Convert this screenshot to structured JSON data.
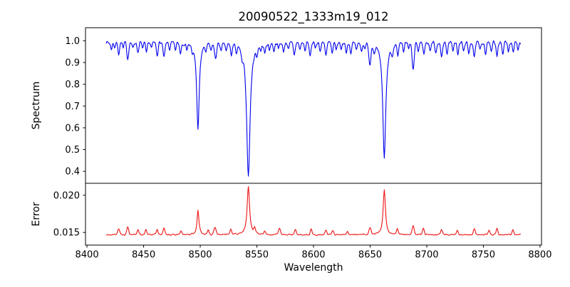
{
  "chart_data": {
    "type": "line",
    "title": "20090522_1333m19_012",
    "xlabel": "Wavelength",
    "xlim": [
      8398.7,
      8801.3
    ],
    "x_ticks": [
      8400,
      8450,
      8500,
      8550,
      8600,
      8650,
      8700,
      8750,
      8800
    ],
    "x_start": 8417,
    "x_end": 8783,
    "x_step": 0.5,
    "grid": false,
    "legend": "none",
    "panels": [
      {
        "name": "spectrum",
        "ylabel": "Spectrum",
        "line_color": "#0000ee",
        "ylim": [
          0.345,
          1.06
        ],
        "y_ticks": [
          0.4,
          0.5,
          0.6,
          0.7,
          0.8,
          0.9,
          1.0
        ],
        "tick_decimals": 1,
        "continuum": 0.992,
        "noise_amp": 0.011,
        "noise_seed": 7,
        "direction": -1,
        "main_lines": [
          {
            "center": 8498.0,
            "min_value": 0.58,
            "id": "CaII-8498"
          },
          {
            "center": 8542.5,
            "min_value": 0.38,
            "id": "CaII-8542"
          },
          {
            "center": 8662.5,
            "min_value": 0.46,
            "id": "CaII-8662"
          }
        ],
        "features": [
          [
            8421.5,
            0.03,
            1.0
          ],
          [
            8424.5,
            0.022,
            0.8
          ],
          [
            8428,
            0.05,
            1.0
          ],
          [
            8432,
            0.028,
            0.8
          ],
          [
            8436,
            0.075,
            1.1
          ],
          [
            8440.5,
            0.028,
            0.9
          ],
          [
            8445,
            0.045,
            1.0
          ],
          [
            8449,
            0.028,
            0.8
          ],
          [
            8452.5,
            0.05,
            1.0
          ],
          [
            8457,
            0.025,
            0.9
          ],
          [
            8462,
            0.055,
            1.1
          ],
          [
            8468,
            0.068,
            1.2
          ],
          [
            8473,
            0.03,
            0.9
          ],
          [
            8478,
            0.035,
            0.9
          ],
          [
            8482.5,
            0.045,
            1.0
          ],
          [
            8488,
            0.025,
            0.8
          ],
          [
            8493,
            0.032,
            0.9
          ],
          [
            8498,
            0.405,
            1.3,
            "l"
          ],
          [
            8505,
            0.028,
            0.9
          ],
          [
            8509.5,
            0.035,
            0.9
          ],
          [
            8513.5,
            0.068,
            1.3
          ],
          [
            8518.5,
            0.04,
            0.9
          ],
          [
            8523,
            0.035,
            0.9
          ],
          [
            8527.5,
            0.05,
            1.0
          ],
          [
            8532,
            0.03,
            0.8
          ],
          [
            8537,
            0.036,
            0.9
          ],
          [
            8542.5,
            0.615,
            1.8,
            "l"
          ],
          [
            8550,
            0.032,
            0.9
          ],
          [
            8553.5,
            0.025,
            0.8
          ],
          [
            8557,
            0.042,
            1.0
          ],
          [
            8561,
            0.03,
            0.8
          ],
          [
            8565,
            0.035,
            0.9
          ],
          [
            8569,
            0.028,
            0.8
          ],
          [
            8573.5,
            0.04,
            1.0
          ],
          [
            8578,
            0.03,
            0.9
          ],
          [
            8583,
            0.055,
            1.1
          ],
          [
            8588,
            0.032,
            0.9
          ],
          [
            8592.5,
            0.038,
            0.9
          ],
          [
            8597,
            0.06,
            1.1
          ],
          [
            8601.5,
            0.028,
            0.8
          ],
          [
            8606,
            0.038,
            0.9
          ],
          [
            8611,
            0.055,
            1.0
          ],
          [
            8616.5,
            0.052,
            1.0
          ],
          [
            8620,
            0.04,
            0.9
          ],
          [
            8624.5,
            0.032,
            0.9
          ],
          [
            8629,
            0.042,
            1.0
          ],
          [
            8633,
            0.048,
            1.0
          ],
          [
            8638,
            0.032,
            0.9
          ],
          [
            8642.5,
            0.036,
            0.9
          ],
          [
            8645.5,
            0.03,
            0.8
          ],
          [
            8649.8,
            0.095,
            1.2
          ],
          [
            8653.5,
            0.035,
            0.9
          ],
          [
            8662.5,
            0.53,
            1.6,
            "l"
          ],
          [
            8669.5,
            0.038,
            0.9
          ],
          [
            8674.5,
            0.058,
            1.0
          ],
          [
            8679.5,
            0.038,
            0.9
          ],
          [
            8684,
            0.03,
            0.8
          ],
          [
            8688,
            0.125,
            1.3
          ],
          [
            8692.5,
            0.04,
            0.9
          ],
          [
            8697.5,
            0.052,
            1.0
          ],
          [
            8703,
            0.038,
            0.9
          ],
          [
            8708,
            0.045,
            1.0
          ],
          [
            8713,
            0.068,
            1.1
          ],
          [
            8718,
            0.048,
            1.0
          ],
          [
            8723,
            0.038,
            0.9
          ],
          [
            8727.5,
            0.058,
            1.0
          ],
          [
            8732.5,
            0.042,
            0.9
          ],
          [
            8737,
            0.052,
            1.0
          ],
          [
            8742,
            0.068,
            1.1
          ],
          [
            8747,
            0.038,
            0.9
          ],
          [
            8752,
            0.052,
            1.0
          ],
          [
            8757,
            0.048,
            0.9
          ],
          [
            8762,
            0.058,
            1.0
          ],
          [
            8767,
            0.052,
            1.0
          ],
          [
            8772,
            0.042,
            0.9
          ],
          [
            8776.5,
            0.048,
            0.9
          ],
          [
            8780.5,
            0.038,
            0.8
          ]
        ]
      },
      {
        "name": "error",
        "ylabel": "Error",
        "line_color": "#ee1111",
        "ylim": [
          0.0133,
          0.0216
        ],
        "y_ticks": [
          0.015,
          0.02
        ],
        "tick_decimals": 3,
        "continuum": 0.0147,
        "noise_amp": 0.00012,
        "noise_seed": 3,
        "direction": 1,
        "main_lines": [
          {
            "center": 8498.0,
            "max_value": 0.018,
            "id": "CaII-8498"
          },
          {
            "center": 8542.5,
            "max_value": 0.0211,
            "id": "CaII-8542"
          },
          {
            "center": 8662.5,
            "max_value": 0.0207,
            "id": "CaII-8662"
          }
        ],
        "features": [
          [
            8428,
            0.0008,
            1.2
          ],
          [
            8436,
            0.001,
            1.2
          ],
          [
            8445,
            0.0006,
            1.0
          ],
          [
            8452,
            0.0007,
            1.0
          ],
          [
            8462,
            0.0006,
            1.0
          ],
          [
            8468,
            0.0009,
            1.2
          ],
          [
            8483,
            0.0005,
            1.0
          ],
          [
            8498,
            0.0033,
            1.0,
            "l"
          ],
          [
            8507,
            0.0006,
            1.0
          ],
          [
            8513,
            0.0009,
            1.3
          ],
          [
            8527,
            0.0007,
            1.0
          ],
          [
            8542.5,
            0.0064,
            1.3,
            "l"
          ],
          [
            8548,
            0.0007,
            1.0
          ],
          [
            8557,
            0.0005,
            1.0
          ],
          [
            8570,
            0.0008,
            1.2
          ],
          [
            8584,
            0.0007,
            1.1
          ],
          [
            8598,
            0.0008,
            1.1
          ],
          [
            8611,
            0.0006,
            1.0
          ],
          [
            8617,
            0.0006,
            1.0
          ],
          [
            8630,
            0.0005,
            1.0
          ],
          [
            8650,
            0.0009,
            1.3
          ],
          [
            8662.5,
            0.006,
            1.2,
            "l"
          ],
          [
            8674,
            0.0007,
            1.0
          ],
          [
            8688,
            0.0012,
            1.3
          ],
          [
            8697,
            0.0008,
            1.1
          ],
          [
            8713,
            0.0007,
            1.1
          ],
          [
            8727,
            0.0006,
            1.0
          ],
          [
            8742,
            0.0008,
            1.1
          ],
          [
            8755,
            0.0006,
            1.0
          ],
          [
            8762,
            0.0008,
            1.1
          ],
          [
            8776,
            0.0007,
            1.0
          ]
        ]
      }
    ],
    "colors": {
      "spectrum_line": "#0000ee",
      "error_line": "#ee1111",
      "axis": "#000000",
      "background": "#ffffff"
    }
  }
}
